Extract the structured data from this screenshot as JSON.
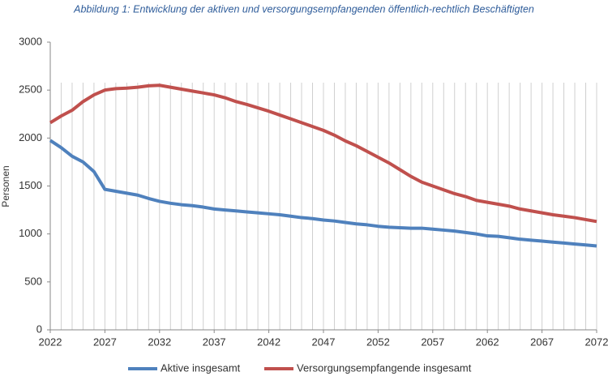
{
  "chart_data": {
    "type": "line",
    "title": "Abbildung 1: Entwicklung der aktiven und versorgungsempfangenden öffentlich-rechtlich Beschäftigten",
    "y_label": "Personen",
    "x": [
      2022,
      2023,
      2024,
      2025,
      2026,
      2027,
      2028,
      2029,
      2030,
      2031,
      2032,
      2033,
      2034,
      2035,
      2036,
      2037,
      2038,
      2039,
      2040,
      2041,
      2042,
      2043,
      2044,
      2045,
      2046,
      2047,
      2048,
      2049,
      2050,
      2051,
      2052,
      2053,
      2054,
      2055,
      2056,
      2057,
      2058,
      2059,
      2060,
      2061,
      2062,
      2063,
      2064,
      2065,
      2066,
      2067,
      2068,
      2069,
      2070,
      2071,
      2072
    ],
    "series": [
      {
        "name": "Aktive insgesamt",
        "color": "#4f81bd",
        "values": [
          1975,
          1900,
          1810,
          1750,
          1650,
          1465,
          1445,
          1425,
          1405,
          1370,
          1340,
          1320,
          1305,
          1295,
          1280,
          1260,
          1250,
          1240,
          1230,
          1220,
          1210,
          1200,
          1185,
          1170,
          1160,
          1145,
          1135,
          1120,
          1105,
          1095,
          1080,
          1070,
          1065,
          1060,
          1060,
          1050,
          1040,
          1030,
          1015,
          1000,
          980,
          975,
          960,
          945,
          935,
          925,
          915,
          905,
          895,
          885,
          875
        ]
      },
      {
        "name": "Versorgungsempfangende insgesamt",
        "color": "#c0504d",
        "values": [
          2160,
          2230,
          2290,
          2380,
          2450,
          2500,
          2515,
          2520,
          2530,
          2545,
          2550,
          2530,
          2510,
          2490,
          2470,
          2450,
          2420,
          2380,
          2350,
          2315,
          2280,
          2240,
          2200,
          2160,
          2120,
          2080,
          2030,
          1970,
          1920,
          1860,
          1800,
          1740,
          1670,
          1600,
          1540,
          1500,
          1460,
          1420,
          1390,
          1350,
          1330,
          1310,
          1290,
          1260,
          1240,
          1220,
          1200,
          1185,
          1170,
          1150,
          1130
        ]
      }
    ],
    "xlim": [
      2022,
      2072
    ],
    "xticks": [
      2022,
      2027,
      2032,
      2037,
      2042,
      2047,
      2052,
      2057,
      2062,
      2067,
      2072
    ],
    "ylim": [
      0,
      3000
    ],
    "yticks": [
      0,
      500,
      1000,
      1500,
      2000,
      2500,
      3000
    ],
    "grid": true
  }
}
